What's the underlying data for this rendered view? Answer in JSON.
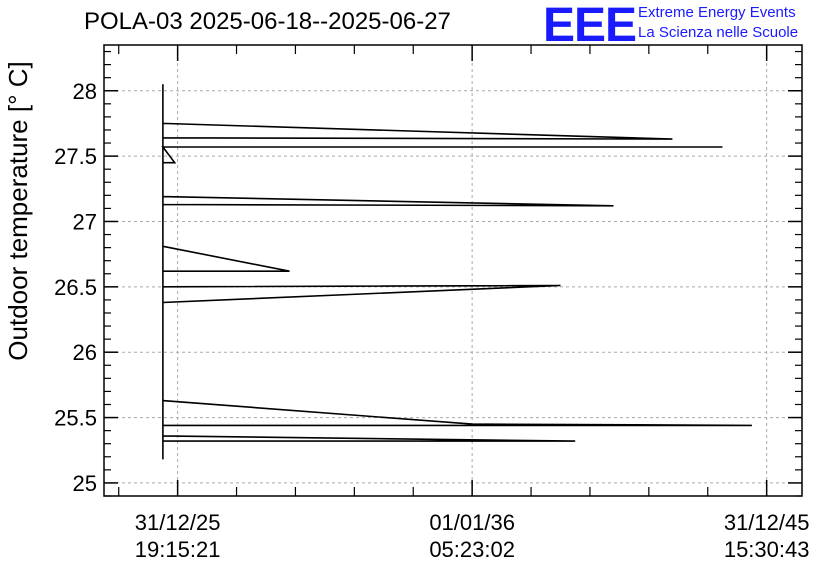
{
  "title": "POLA-03 2025-06-18--2025-06-27",
  "logo": {
    "mark": "EEE",
    "line1": "Extreme Energy Events",
    "line2": "La Scienza nelle Scuole",
    "color": "#1a1aff"
  },
  "chart_data": {
    "type": "line",
    "title": "POLA-03 2025-06-18--2025-06-27",
    "xlabel": "",
    "ylabel": "Outdoor temperature [° C]",
    "ylim": [
      24.9,
      28.35
    ],
    "xlim": [
      -0.5,
      23.2
    ],
    "grid": true,
    "y_ticks": [
      25,
      25.5,
      26,
      26.5,
      27,
      27.5,
      28
    ],
    "y_tick_labels": [
      "25",
      "25.5",
      "26",
      "26.5",
      "27",
      "27.5",
      "28"
    ],
    "x_ticks": [
      {
        "x": 2,
        "line1": "31/12/25",
        "line2": "19:15:21"
      },
      {
        "x": 12,
        "line1": "01/01/36",
        "line2": "05:23:02"
      },
      {
        "x": 22,
        "line1": "31/12/45",
        "line2": "15:30:43"
      }
    ],
    "series": [
      {
        "color": "#000000",
        "points": [
          [
            1.5,
            28.05
          ],
          [
            1.5,
            25.18
          ],
          [
            1.5,
            25.32
          ],
          [
            15.5,
            25.32
          ],
          [
            1.5,
            25.36
          ],
          [
            1.5,
            25.44
          ],
          [
            21.5,
            25.44
          ],
          [
            12,
            25.45
          ],
          [
            1.5,
            25.63
          ],
          [
            1.5,
            26.38
          ],
          [
            15,
            26.51
          ],
          [
            1.5,
            26.5
          ],
          [
            1.5,
            26.62
          ],
          [
            5.8,
            26.62
          ],
          [
            1.5,
            26.81
          ],
          [
            1.5,
            27.13
          ],
          [
            16.8,
            27.12
          ],
          [
            1.5,
            27.19
          ],
          [
            1.5,
            27.57
          ],
          [
            20.5,
            27.57
          ],
          [
            1.5,
            27.57
          ],
          [
            1.9,
            27.45
          ],
          [
            1.5,
            27.45
          ],
          [
            1.5,
            27.64
          ],
          [
            18.8,
            27.63
          ],
          [
            1.5,
            27.75
          ],
          [
            1.5,
            28.05
          ]
        ]
      }
    ]
  }
}
